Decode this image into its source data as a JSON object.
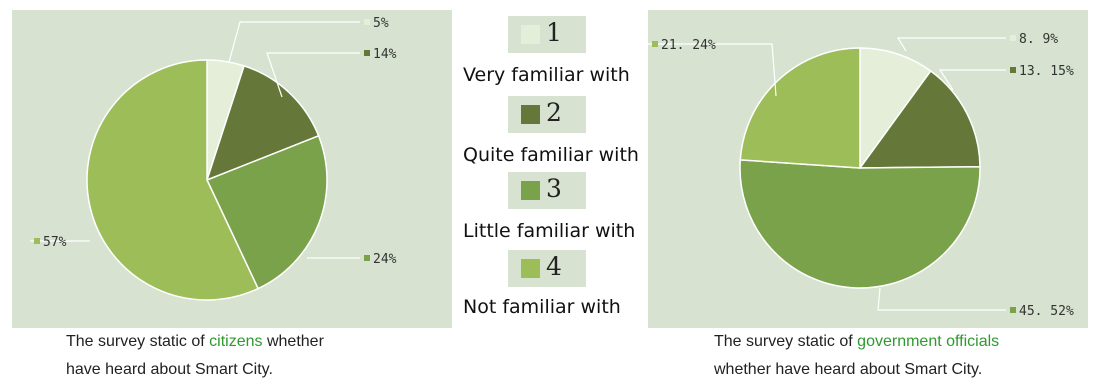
{
  "colors": {
    "panel_bg": "#d7e3d0",
    "cat1": "#e4eed9",
    "cat2": "#65783a",
    "cat3": "#7aa24a",
    "cat4": "#9dbd58",
    "highlight_text": "#2e9a2e"
  },
  "legend": [
    {
      "num": "1",
      "label": "Very familiar with"
    },
    {
      "num": "2",
      "label": "Quite familiar with"
    },
    {
      "num": "3",
      "label": "Little familiar with"
    },
    {
      "num": "4",
      "label": "Not familiar with"
    }
  ],
  "captions": {
    "left": {
      "pre": "The survey static of ",
      "highlight": "citizens",
      "post": " whether",
      "line2": "have heard about Smart City."
    },
    "right": {
      "pre": "The survey static of ",
      "highlight": "government  officials",
      "line2": "whether have heard about Smart City."
    }
  },
  "chart_data": [
    {
      "type": "pie",
      "categories": [
        "1",
        "2",
        "3",
        "4"
      ],
      "values": [
        5,
        14,
        24,
        57
      ],
      "data_labels": [
        "5%",
        "14%",
        "24%",
        "57%"
      ],
      "legend": "center"
    },
    {
      "type": "pie",
      "categories": [
        "1",
        "2",
        "3",
        "4"
      ],
      "values": [
        8.9,
        13.15,
        45.52,
        21.24
      ],
      "data_labels": [
        "8. 9%",
        "13. 15%",
        "45. 52%",
        "21. 24%"
      ],
      "legend": "center"
    }
  ]
}
